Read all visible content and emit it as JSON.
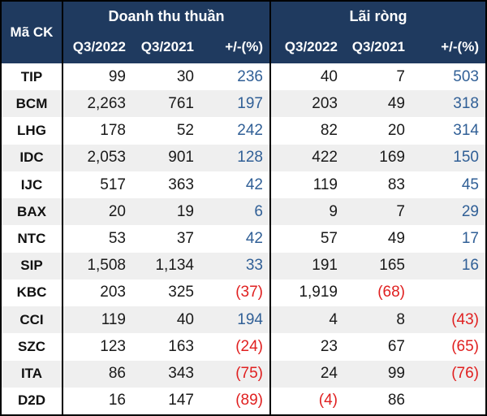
{
  "table": {
    "corner_header": "Mã CK",
    "groups": [
      {
        "label": "Doanh thu thuần",
        "columns": [
          "Q3/2022",
          "Q3/2021",
          "+/-(%)"
        ]
      },
      {
        "label": "Lãi ròng",
        "columns": [
          "Q3/2022",
          "Q3/2021",
          "+/-(%)"
        ]
      }
    ],
    "rows": [
      {
        "cells": [
          "TIP",
          "99",
          "30",
          "236",
          "40",
          "7",
          "503"
        ]
      },
      {
        "cells": [
          "BCM",
          "2,263",
          "761",
          "197",
          "203",
          "49",
          "318"
        ]
      },
      {
        "cells": [
          "LHG",
          "178",
          "52",
          "242",
          "82",
          "20",
          "314"
        ]
      },
      {
        "cells": [
          "IDC",
          "2,053",
          "901",
          "128",
          "422",
          "169",
          "150"
        ]
      },
      {
        "cells": [
          "IJC",
          "517",
          "363",
          "42",
          "119",
          "83",
          "45"
        ]
      },
      {
        "cells": [
          "BAX",
          "20",
          "19",
          "6",
          "9",
          "7",
          "29"
        ]
      },
      {
        "cells": [
          "NTC",
          "53",
          "37",
          "42",
          "57",
          "49",
          "17"
        ]
      },
      {
        "cells": [
          "SIP",
          "1,508",
          "1,134",
          "33",
          "191",
          "165",
          "16"
        ]
      },
      {
        "cells": [
          "KBC",
          "203",
          "325",
          "(37)",
          "1,919",
          "(68)",
          ""
        ]
      },
      {
        "cells": [
          "CCI",
          "119",
          "40",
          "194",
          "4",
          "8",
          "(43)"
        ]
      },
      {
        "cells": [
          "SZC",
          "123",
          "163",
          "(24)",
          "23",
          "67",
          "(65)"
        ]
      },
      {
        "cells": [
          "ITA",
          "86",
          "343",
          "(75)",
          "24",
          "99",
          "(76)"
        ]
      },
      {
        "cells": [
          "D2D",
          "16",
          "147",
          "(89)",
          "(4)",
          "86",
          ""
        ]
      }
    ],
    "colors": {
      "header_bg": "#1f3a5f",
      "header_text": "#ffffff",
      "stripe": "#efefef",
      "positive_change": "#305f96",
      "negative_value": "#e02020",
      "border": "#000000",
      "text": "#1a1a1a"
    }
  },
  "chart_data": {
    "type": "table",
    "column_groups": [
      "Mã CK",
      "Doanh thu thuần",
      "Lãi ròng"
    ],
    "columns": [
      "Mã CK",
      "Doanh thu thuần Q3/2022",
      "Doanh thu thuần Q3/2021",
      "Doanh thu thuần +/-(%)",
      "Lãi ròng Q3/2022",
      "Lãi ròng Q3/2021",
      "Lãi ròng +/-(%)"
    ],
    "rows": [
      [
        "TIP",
        99,
        30,
        236,
        40,
        7,
        503
      ],
      [
        "BCM",
        2263,
        761,
        197,
        203,
        49,
        318
      ],
      [
        "LHG",
        178,
        52,
        242,
        82,
        20,
        314
      ],
      [
        "IDC",
        2053,
        901,
        128,
        422,
        169,
        150
      ],
      [
        "IJC",
        517,
        363,
        42,
        119,
        83,
        45
      ],
      [
        "BAX",
        20,
        19,
        6,
        9,
        7,
        29
      ],
      [
        "NTC",
        53,
        37,
        42,
        57,
        49,
        17
      ],
      [
        "SIP",
        1508,
        1134,
        33,
        191,
        165,
        16
      ],
      [
        "KBC",
        203,
        325,
        -37,
        1919,
        -68,
        null
      ],
      [
        "CCI",
        119,
        40,
        194,
        4,
        8,
        -43
      ],
      [
        "SZC",
        123,
        163,
        -24,
        23,
        67,
        -65
      ],
      [
        "ITA",
        86,
        343,
        -75,
        24,
        99,
        -76
      ],
      [
        "D2D",
        16,
        147,
        -89,
        -4,
        86,
        null
      ]
    ],
    "notes": "Negative values shown in red parentheses; positive +/-(%) values shown in blue"
  }
}
